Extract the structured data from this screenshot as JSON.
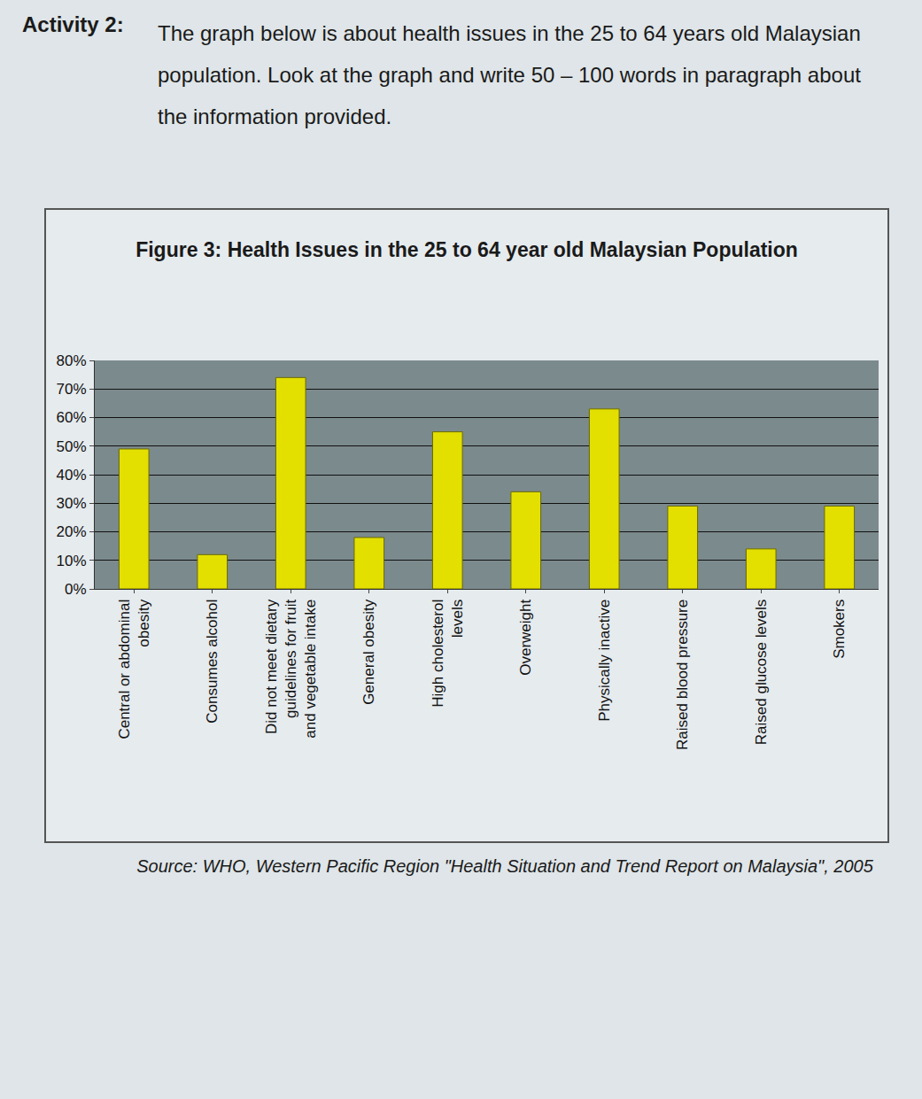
{
  "activity": {
    "label": "Activity 2:",
    "text": "The graph below is about health issues in the 25 to 64 years old Malaysian population. Look at the graph and write 50 – 100 words in paragraph about the information provided."
  },
  "chart_data": {
    "type": "bar",
    "title": "Figure 3: Health Issues in the 25 to 64 year old Malaysian Population",
    "categories": [
      "Central or abdominal obesity",
      "Consumes alcohol",
      "Did not meet dietary guidelines for fruit and vegetable intake",
      "General obesity",
      "High cholesterol levels",
      "Overweight",
      "Physically inactive",
      "Raised blood pressure",
      "Raised glucose levels",
      "Smokers"
    ],
    "values": [
      49,
      12,
      74,
      18,
      55,
      34,
      63,
      29,
      14,
      29
    ],
    "color": "#e3e000",
    "ylim": [
      0,
      80
    ],
    "yticks": [
      {
        "value": 0,
        "label": "0%"
      },
      {
        "value": 10,
        "label": "10%"
      },
      {
        "value": 20,
        "label": "20%"
      },
      {
        "value": 30,
        "label": "30%"
      },
      {
        "value": 40,
        "label": "40%"
      },
      {
        "value": 50,
        "label": "50%"
      },
      {
        "value": 60,
        "label": "60%"
      },
      {
        "value": 70,
        "label": "70%"
      },
      {
        "value": 80,
        "label": "80%"
      }
    ],
    "grid": true
  },
  "source": "Source: WHO, Western Pacific Region \"Health Situation and Trend Report on Malaysia\", 2005"
}
